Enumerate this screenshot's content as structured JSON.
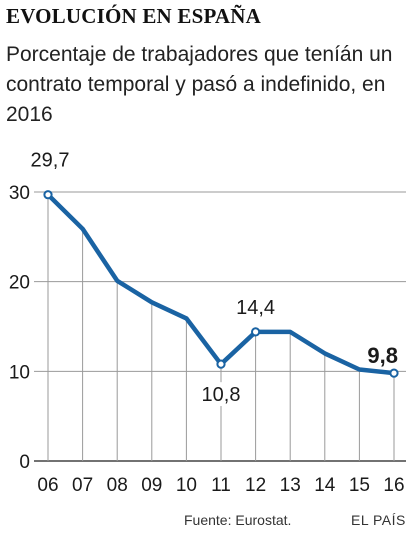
{
  "header": {
    "title": "EVOLUCIÓN EN ESPAÑA",
    "subtitle": "Porcentaje de trabajadores que teníán un contrato temporal y pasó a indefinido, en 2016"
  },
  "footer": {
    "source": "Fuente: Eurostat.",
    "brand": "EL PAÍS"
  },
  "colors": {
    "line": "#1a63a3",
    "grid": "#9a9a9a",
    "text": "#1a1a1a"
  },
  "chart_data": {
    "type": "line",
    "categories": [
      "06",
      "07",
      "08",
      "09",
      "10",
      "11",
      "12",
      "13",
      "14",
      "15",
      "16"
    ],
    "series": [
      {
        "values": [
          29.7,
          25.9,
          20.1,
          17.7,
          15.9,
          10.8,
          14.4,
          14.4,
          12.0,
          10.2,
          9.8
        ]
      }
    ],
    "yticks": [
      "0",
      "10",
      "20",
      "30"
    ],
    "ylim": [
      0,
      30
    ],
    "grid": "vertical lines at each year plus horizontal lines at 10, 20, 30",
    "annotations": [
      {
        "index": 0,
        "label": "29,7",
        "position": "above"
      },
      {
        "index": 5,
        "label": "10,8",
        "position": "below"
      },
      {
        "index": 6,
        "label": "14,4",
        "position": "above"
      },
      {
        "index": 10,
        "label": "9,8",
        "position": "above",
        "bold": true
      }
    ]
  }
}
